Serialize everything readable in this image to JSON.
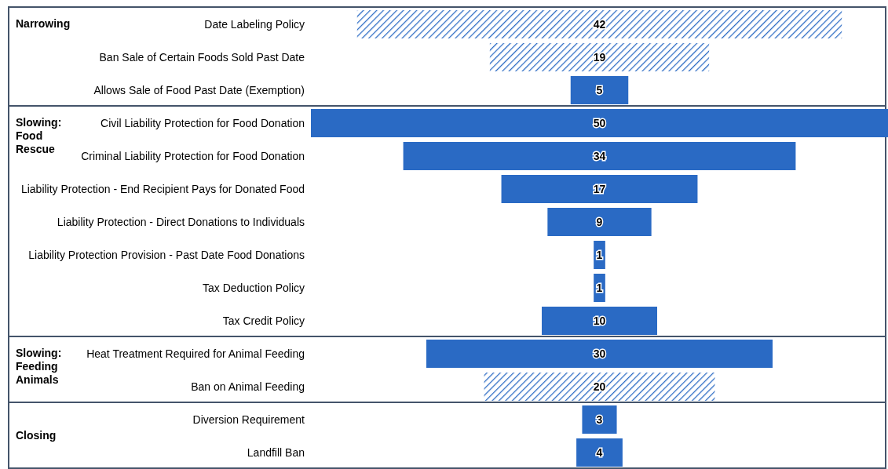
{
  "chart_data": {
    "type": "other",
    "categories": [
      "Date Labeling Policy",
      "Ban Sale of Certain Foods Sold Past Date",
      "Allows Sale of Food Past Date (Exemption)",
      "Civil Liability Protection for Food Donation",
      "Criminal Liability Protection for Food Donation",
      "Liability Protection - End Recipient Pays for Donated Food",
      "Liability Protection - Direct Donations to Individuals",
      "Liability Protection Provision - Past Date Food Donations",
      "Tax Deduction Policy",
      "Tax Credit Policy",
      "Heat Treatment Required for Animal Feeding",
      "Ban on Animal Feeding",
      "Diversion Requirement",
      "Landfill Ban"
    ],
    "series": [
      {
        "color": "#2a6ac4",
        "values": [
          null,
          null,
          5,
          50,
          34,
          17,
          9,
          1,
          1,
          10,
          30,
          null,
          3,
          4
        ]
      },
      {
        "color": "#2a6ac4",
        "values": [
          42,
          19,
          null,
          null,
          null,
          null,
          null,
          null,
          null,
          null,
          null,
          20,
          null,
          null
        ]
      }
    ],
    "data_labels": true,
    "annotations": [
      {
        "text": "Narrowing",
        "y": "Date Labeling Policy"
      },
      {
        "text": "Slowing: Food Rescue",
        "y": "Civil Liability Protection for Food Donation"
      },
      {
        "text": "Slowing: Feeding Animals",
        "y": "Heat Treatment Required for Animal Feeding"
      },
      {
        "text": "Closing",
        "y": "Diversion Requirement"
      }
    ]
  }
}
